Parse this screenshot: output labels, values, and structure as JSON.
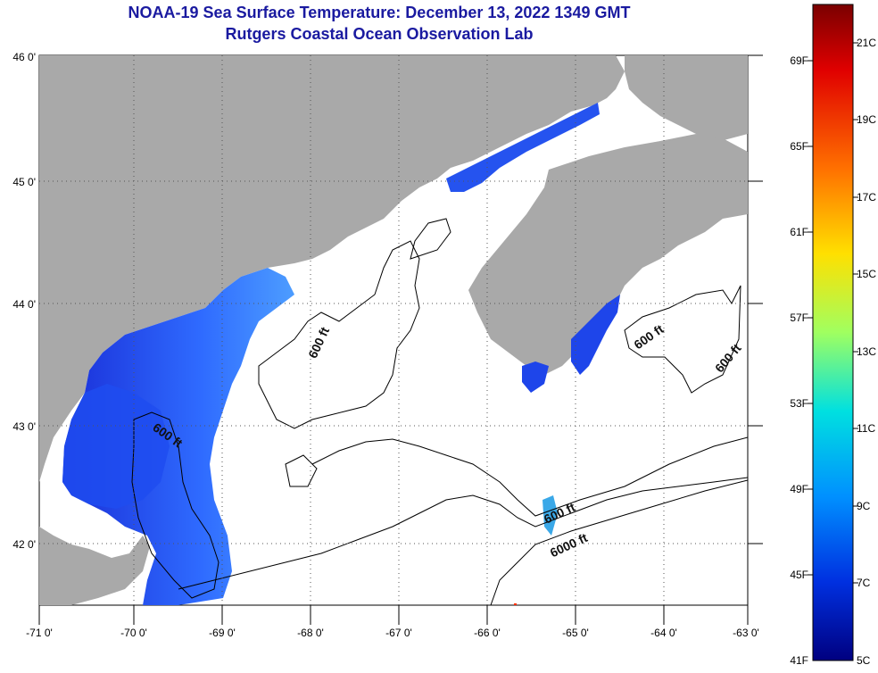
{
  "title_line1": "NOAA-19 Sea Surface Temperature:  December 13, 2022 1349 GMT",
  "title_line2": "Rutgers Coastal Ocean Observation Lab",
  "map": {
    "lon_range": [
      -71,
      -63
    ],
    "lat_range": [
      41.5,
      46
    ],
    "lon_ticks": [
      "-71 0'",
      "-70 0'",
      "-69 0'",
      "-68 0'",
      "-67 0'",
      "-66 0'",
      "-65 0'",
      "-64 0'",
      "-63 0'"
    ],
    "lat_ticks": [
      "46 0'",
      "45 0'",
      "44 0'",
      "43 0'",
      "42 0'"
    ],
    "land_color": "#a9a9a9",
    "no_data_color": "#ffffff",
    "contour_labels": [
      "600 ft",
      "600 ft",
      "600 ft",
      "600 ft",
      "600 ft",
      "6000 ft"
    ]
  },
  "colorbar": {
    "celsius_labels": [
      "21C",
      "19C",
      "17C",
      "15C",
      "13C",
      "11C",
      "9C",
      "7C",
      "5C"
    ],
    "fahrenheit_labels": [
      "69F",
      "65F",
      "61F",
      "57F",
      "53F",
      "49F",
      "45F",
      "41F"
    ],
    "colors": [
      "#7a0000",
      "#e00000",
      "#ff7000",
      "#ffe000",
      "#a0ff60",
      "#00e0e0",
      "#0090ff",
      "#0030e0",
      "#000080"
    ]
  }
}
